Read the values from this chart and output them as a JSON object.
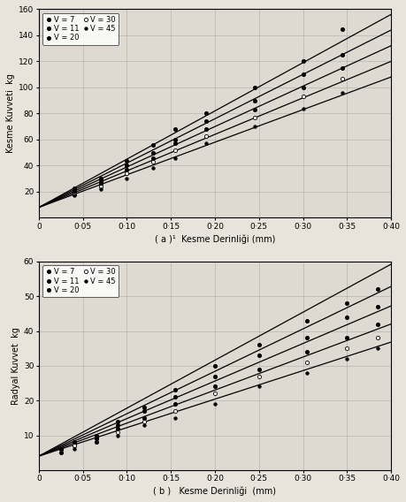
{
  "xlabel_a": "( a )¹  Kesme Derinliği (mm)",
  "xlabel_b": "( b )   Kesme Derinliği  (mm)",
  "ylabel_a": "Kesme Kuvveti  kg",
  "ylabel_b": "Radyal Kuvvet  kg",
  "legend_labels": [
    "V = 7",
    "V = 11",
    "V = 20",
    "V = 30",
    "V = 45"
  ],
  "xlim": [
    0,
    0.4
  ],
  "ylim_a": [
    0,
    160
  ],
  "ylim_b": [
    0,
    60
  ],
  "xtick_vals": [
    0,
    0.05,
    0.1,
    0.15,
    0.2,
    0.25,
    0.3,
    0.35,
    0.4
  ],
  "xtick_labels": [
    "0",
    "0·05",
    "0·10",
    "0·15",
    "0·20",
    "0·25",
    "0·30",
    "0·35",
    "0·40"
  ],
  "yticks_a": [
    20,
    40,
    60,
    80,
    100,
    120,
    140,
    160
  ],
  "ytick_labels_a": [
    "20",
    "40",
    "60",
    "80",
    "100",
    "120",
    "140",
    "160"
  ],
  "yticks_b": [
    10,
    20,
    30,
    40,
    50,
    60
  ],
  "ytick_labels_b": [
    "10",
    "20",
    "30",
    "40",
    "50",
    "60"
  ],
  "lines_a": [
    {
      "slope": 370,
      "intercept": 8
    },
    {
      "slope": 340,
      "intercept": 8
    },
    {
      "slope": 310,
      "intercept": 8
    },
    {
      "slope": 280,
      "intercept": 8
    },
    {
      "slope": 250,
      "intercept": 8
    }
  ],
  "lines_b": [
    {
      "slope": 138,
      "intercept": 4
    },
    {
      "slope": 122,
      "intercept": 4
    },
    {
      "slope": 108,
      "intercept": 4
    },
    {
      "slope": 95,
      "intercept": 4
    },
    {
      "slope": 82,
      "intercept": 4
    }
  ],
  "scatter_a": [
    {
      "x": [
        0.04,
        0.07,
        0.1,
        0.13,
        0.155,
        0.19,
        0.245,
        0.3,
        0.345
      ],
      "y": [
        23,
        30,
        44,
        56,
        68,
        80,
        100,
        120,
        145
      ]
    },
    {
      "x": [
        0.04,
        0.07,
        0.1,
        0.13,
        0.155,
        0.19,
        0.245,
        0.3,
        0.345
      ],
      "y": [
        21,
        28,
        40,
        50,
        60,
        74,
        90,
        110,
        125
      ]
    },
    {
      "x": [
        0.04,
        0.07,
        0.1,
        0.13,
        0.155,
        0.19,
        0.245,
        0.3,
        0.345
      ],
      "y": [
        20,
        26,
        37,
        46,
        57,
        68,
        83,
        100,
        115
      ]
    },
    {
      "x": [
        0.04,
        0.07,
        0.1,
        0.13,
        0.155,
        0.19,
        0.245,
        0.3,
        0.345
      ],
      "y": [
        18,
        24,
        34,
        43,
        52,
        63,
        77,
        93,
        107
      ]
    },
    {
      "x": [
        0.04,
        0.07,
        0.1,
        0.13,
        0.155,
        0.19,
        0.245,
        0.3,
        0.345
      ],
      "y": [
        17,
        22,
        30,
        38,
        46,
        57,
        70,
        84,
        96
      ]
    }
  ],
  "scatter_b": [
    {
      "x": [
        0.025,
        0.04,
        0.065,
        0.09,
        0.12,
        0.155,
        0.2,
        0.25,
        0.305,
        0.35,
        0.385
      ],
      "y": [
        6,
        8,
        10,
        14,
        18,
        23,
        30,
        36,
        43,
        48,
        52
      ]
    },
    {
      "x": [
        0.025,
        0.04,
        0.065,
        0.09,
        0.12,
        0.155,
        0.2,
        0.25,
        0.305,
        0.35,
        0.385
      ],
      "y": [
        6,
        7,
        9,
        13,
        17,
        21,
        27,
        33,
        38,
        44,
        47
      ]
    },
    {
      "x": [
        0.025,
        0.04,
        0.065,
        0.09,
        0.12,
        0.155,
        0.2,
        0.25,
        0.305,
        0.35,
        0.385
      ],
      "y": [
        6,
        7,
        9,
        12,
        15,
        19,
        24,
        29,
        34,
        38,
        42
      ]
    },
    {
      "x": [
        0.025,
        0.04,
        0.065,
        0.09,
        0.12,
        0.155,
        0.2,
        0.25,
        0.305,
        0.35,
        0.385
      ],
      "y": [
        5,
        7,
        8,
        11,
        14,
        17,
        22,
        27,
        31,
        35,
        38
      ]
    },
    {
      "x": [
        0.025,
        0.04,
        0.065,
        0.09,
        0.12,
        0.155,
        0.2,
        0.25,
        0.305,
        0.35,
        0.385
      ],
      "y": [
        5,
        6,
        8,
        10,
        13,
        15,
        19,
        24,
        28,
        32,
        35
      ]
    }
  ],
  "bg_color": "#e8e4dc",
  "plot_bg": "#dedad2",
  "grid_color": "#999999",
  "line_color": "#000000",
  "line_lw": 0.9,
  "marker_size": 3.0
}
